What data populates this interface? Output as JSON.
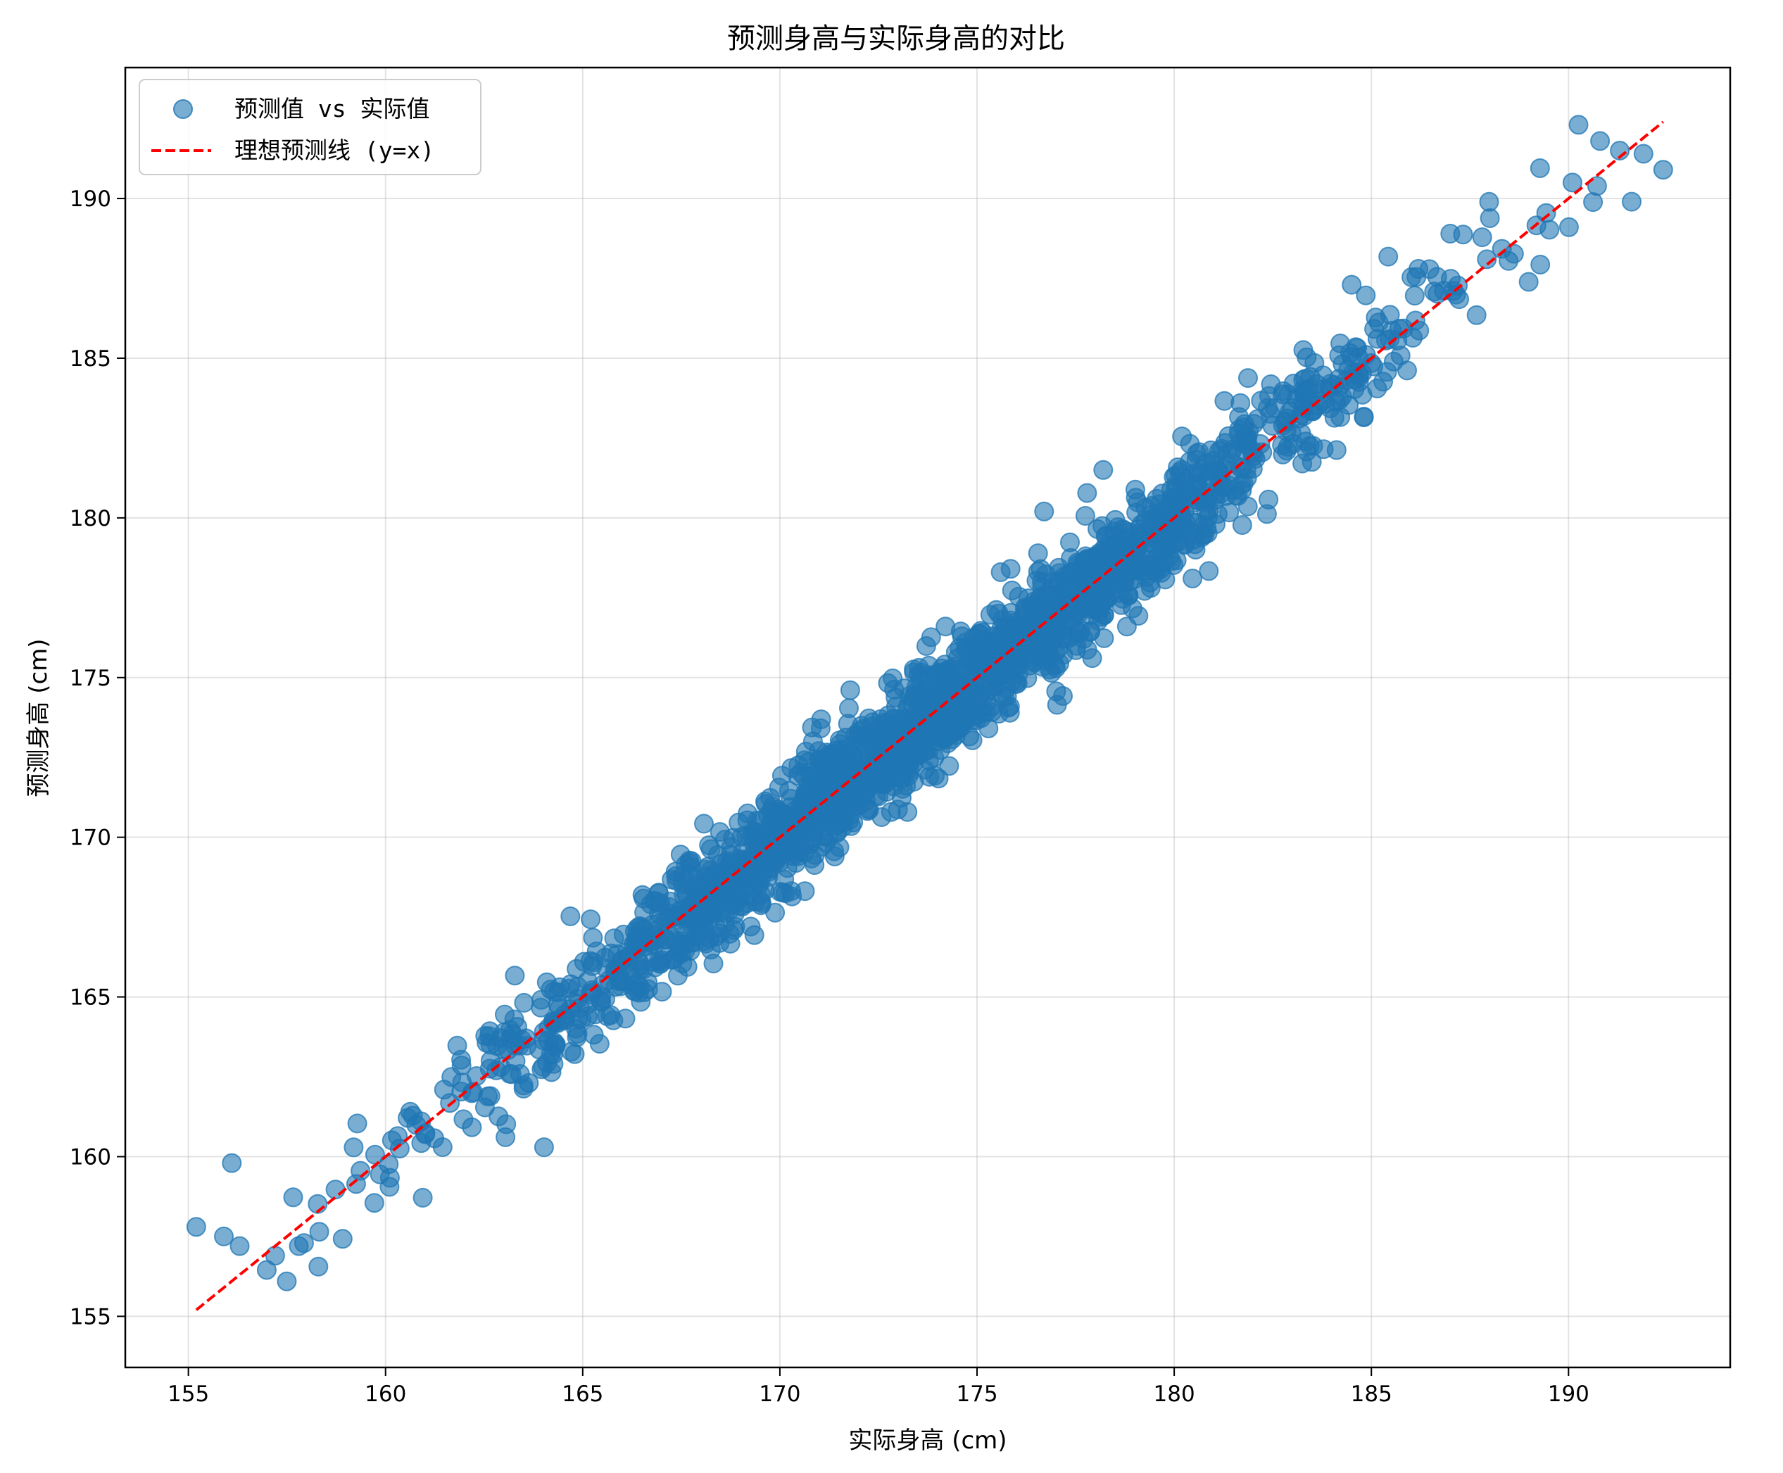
{
  "chart_data": {
    "type": "scatter",
    "title": "预测身高与实际身高的对比",
    "xlabel": "实际身高 (cm)",
    "ylabel": "预测身高 (cm)",
    "xlim": [
      153.4,
      194.1
    ],
    "ylim": [
      153.4,
      194.1
    ],
    "xticks": [
      155,
      160,
      165,
      170,
      175,
      180,
      185,
      190
    ],
    "yticks": [
      155,
      160,
      165,
      170,
      175,
      180,
      185,
      190
    ],
    "grid": true,
    "legend_position": "top-left",
    "series": [
      {
        "name": "预测值 vs 实际值",
        "kind": "scatter",
        "color": "#1f77b4",
        "alpha": 0.6,
        "n_points": 2000,
        "x_range": [
          155.2,
          192.4
        ],
        "noise_sd": 0.9,
        "outliers": [
          [
            155.2,
            157.8
          ],
          [
            155.9,
            157.5
          ],
          [
            156.1,
            159.8
          ],
          [
            156.3,
            157.2
          ],
          [
            157.2,
            156.9
          ],
          [
            157.8,
            157.2
          ],
          [
            166.8,
            166.1
          ],
          [
            174.2,
            176.6
          ],
          [
            175.6,
            178.3
          ],
          [
            176.7,
            180.2
          ],
          [
            178.2,
            181.5
          ],
          [
            178.8,
            176.6
          ],
          [
            184.5,
            187.3
          ],
          [
            187.0,
            188.9
          ],
          [
            190.1,
            190.5
          ],
          [
            190.8,
            191.8
          ],
          [
            191.3,
            191.5
          ],
          [
            191.6,
            189.9
          ],
          [
            191.9,
            191.4
          ],
          [
            192.4,
            190.9
          ]
        ]
      },
      {
        "name": "理想预测线 (y=x)",
        "kind": "line",
        "style": "dashed",
        "color": "#ff0000",
        "x": [
          155.2,
          192.4
        ],
        "y": [
          155.2,
          192.4
        ]
      }
    ]
  }
}
